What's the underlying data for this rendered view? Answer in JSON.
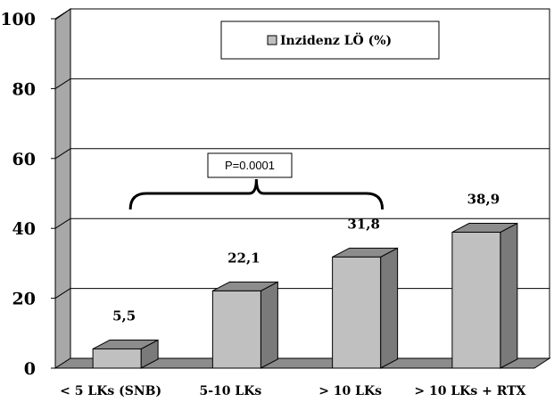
{
  "chart_data": {
    "type": "bar",
    "title": "",
    "xlabel": "",
    "ylabel": "",
    "categories": [
      "< 5 LKs (SNB)",
      "5-10 LKs",
      "> 10 LKs",
      "> 10 LKs + RTX"
    ],
    "series": [
      {
        "name": "Inzidenz LÖ (%)",
        "values": [
          5.5,
          22.1,
          31.8,
          38.9
        ]
      }
    ],
    "value_labels": [
      "5,5",
      "22,1",
      "31,8",
      "38,9"
    ],
    "ylim": [
      0,
      100
    ],
    "yticks": [
      0,
      20,
      40,
      60,
      80,
      100
    ],
    "grid": true,
    "legend_position": "top-right",
    "annotation": {
      "text": "P=0.0001",
      "spans_categories": [
        0,
        2
      ]
    },
    "colors": {
      "bar_front": "#c0c0c0",
      "bar_top": "#8c8c8c",
      "bar_side": "#7a7a7a",
      "left_wall": "#a8a8a8",
      "floor": "#8c8c8c",
      "legend_swatch": "#c0c0c0"
    }
  }
}
